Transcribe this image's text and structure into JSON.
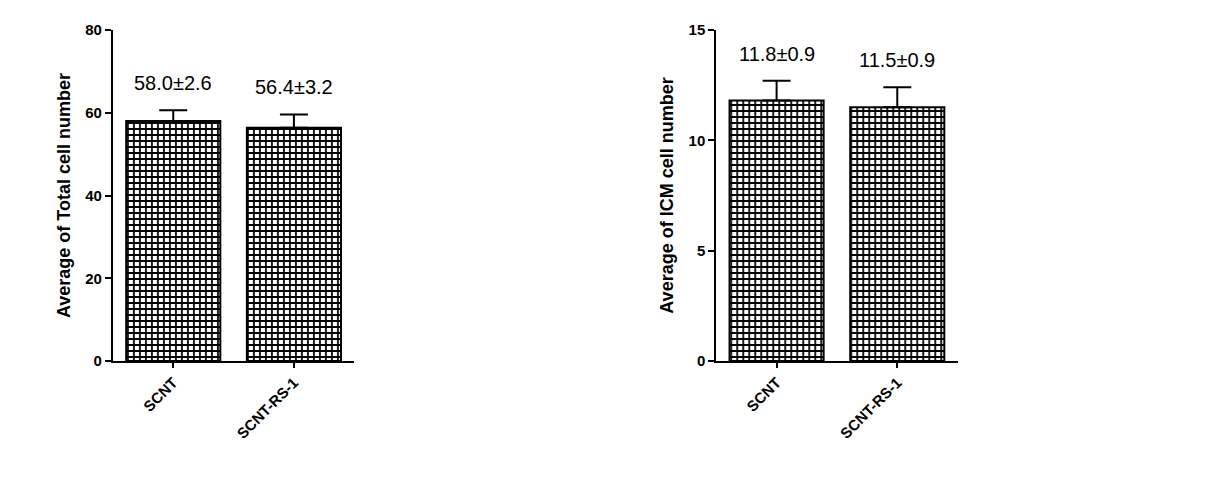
{
  "chart_data": [
    {
      "type": "bar",
      "categories": [
        "SCNT",
        "SCNT-RS-1"
      ],
      "values": [
        58.0,
        56.4
      ],
      "errors": [
        2.6,
        3.2
      ],
      "value_labels": [
        "58.0±2.6",
        "56.4±3.2"
      ],
      "data_labels": true,
      "color": "#000000",
      "y_label": "Average of Total cell number",
      "ylim": [
        0,
        80
      ],
      "yticks": [
        0,
        20,
        40,
        60,
        80
      ],
      "grid": false
    },
    {
      "type": "bar",
      "categories": [
        "SCNT",
        "SCNT-RS-1"
      ],
      "values": [
        11.8,
        11.5
      ],
      "errors": [
        0.9,
        0.9
      ],
      "value_labels": [
        "11.8±0.9",
        "11.5±0.9"
      ],
      "data_labels": true,
      "color": "#000000",
      "y_label": "Average of ICM cell number",
      "ylim": [
        0,
        15
      ],
      "yticks": [
        0,
        5,
        10,
        15
      ],
      "grid": false
    }
  ]
}
